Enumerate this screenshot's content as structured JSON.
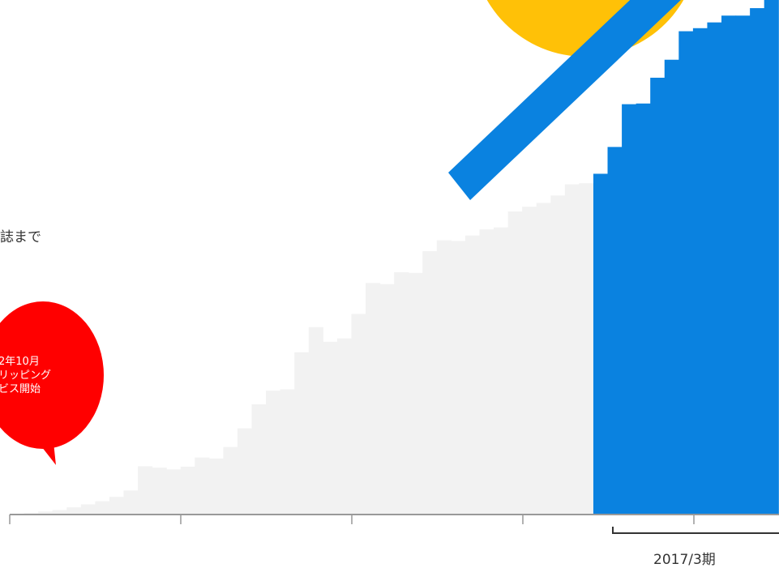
{
  "side_text": "誌まで",
  "callout": {
    "lines": [
      "2年10月",
      "リッピング",
      "ビス開始"
    ],
    "color": "#ff0000"
  },
  "period_label": "2017/3期",
  "colors": {
    "past_bars": "#f2f2f2",
    "current_bars": "#0a82e0",
    "axis": "#999999",
    "sun_decoration": "#ffc107",
    "rocket_decoration": "#0a82e0",
    "bracket": "#333333"
  },
  "chart_data": {
    "type": "bar",
    "grid": false,
    "legend": "none",
    "xlabel": "",
    "ylabel": "",
    "ylim": [
      0,
      100
    ],
    "x_ticks": 5,
    "highlight_label": "2017/3期",
    "series": [
      {
        "values": [
          0.2,
          0.4,
          0.9,
          1.3,
          2.1,
          3.0,
          3.9,
          5.2,
          7.1,
          14.2,
          13.8,
          13.3,
          14.1,
          16.8,
          16.5,
          19.9,
          25.4,
          32.5,
          36.5,
          36.9,
          47.8,
          55.2,
          50.9,
          51.9,
          59.1,
          68.2,
          67.9,
          71.4,
          71.2,
          77.6,
          80.8,
          80.6,
          82.2,
          84.0,
          84.6,
          89.3,
          90.7,
          91.8,
          94.0,
          97.3,
          97.6
        ]
      },
      {
        "values": [
          100.4,
          108.3,
          120.9,
          121.1,
          128.7,
          134.0,
          142.4,
          143.3,
          145.0,
          147.0,
          147.0,
          149.2,
          151.6
        ]
      }
    ]
  }
}
